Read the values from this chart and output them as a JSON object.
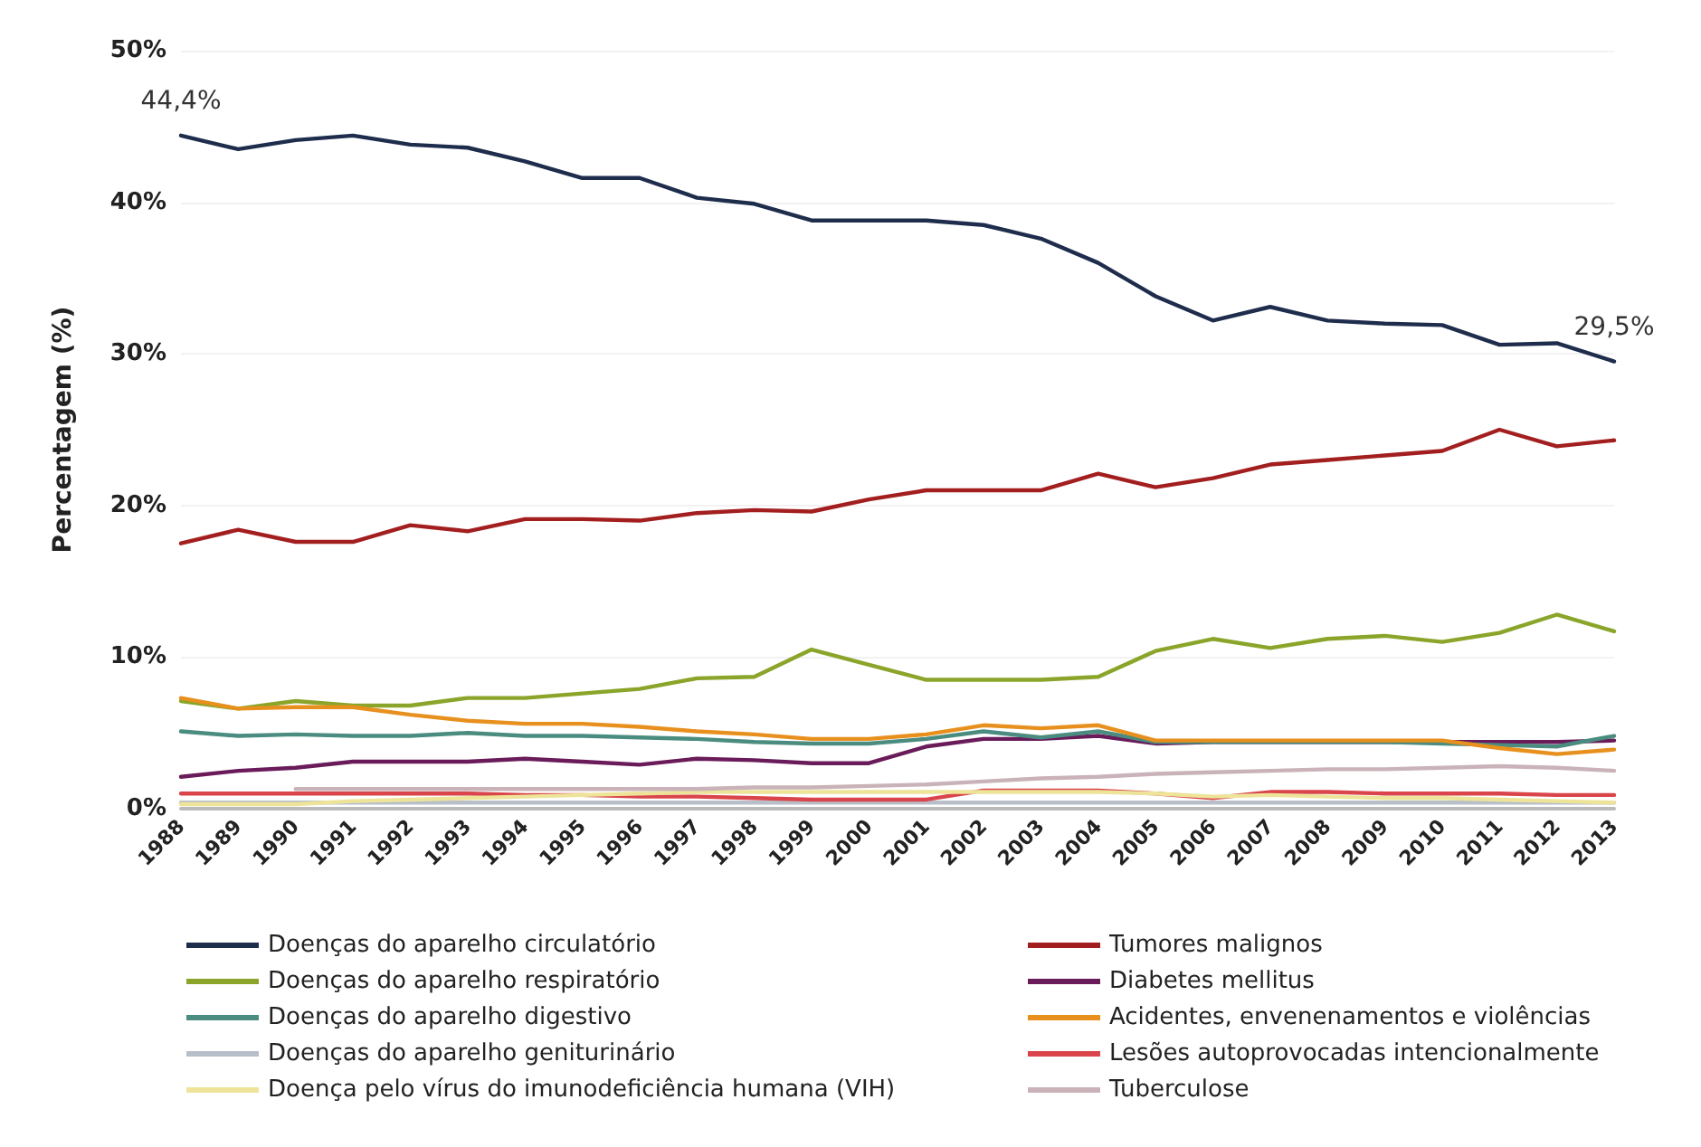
{
  "chart_data": {
    "type": "line",
    "ylabel": "Percentagem (%)",
    "categories": [
      "1988",
      "1989",
      "1990",
      "1991",
      "1992",
      "1993",
      "1994",
      "1995",
      "1996",
      "1997",
      "1998",
      "1999",
      "2000",
      "2001",
      "2002",
      "2003",
      "2004",
      "2005",
      "2006",
      "2007",
      "2008",
      "2009",
      "2010",
      "2011",
      "2012",
      "2013"
    ],
    "ylim": [
      0,
      50
    ],
    "yticks": [
      {
        "value": 0,
        "label": "0%"
      },
      {
        "value": 10,
        "label": "10%"
      },
      {
        "value": 20,
        "label": "20%"
      },
      {
        "value": 30,
        "label": "30%"
      },
      {
        "value": 40,
        "label": "40%"
      },
      {
        "value": 50,
        "label": "50%"
      }
    ],
    "grid": "y",
    "legend": "bottom",
    "line_style": "solid",
    "marker": "none",
    "series": [
      {
        "name": "Doenças do aparelho circulatório",
        "color": "#1f2d4d",
        "values": [
          44.4,
          43.5,
          44.1,
          44.4,
          43.8,
          43.6,
          42.7,
          41.6,
          41.6,
          40.3,
          39.9,
          38.8,
          38.8,
          38.8,
          38.5,
          37.6,
          36.0,
          33.8,
          32.2,
          33.1,
          32.2,
          32.0,
          31.9,
          30.6,
          30.7,
          29.5
        ],
        "value_labels": [
          "44,4%",
          null,
          null,
          null,
          null,
          null,
          null,
          null,
          null,
          null,
          null,
          null,
          null,
          null,
          null,
          null,
          null,
          null,
          null,
          null,
          null,
          null,
          null,
          null,
          null,
          "29,5%"
        ]
      },
      {
        "name": "Tumores malignos",
        "color": "#a31f1f",
        "values": [
          17.5,
          18.4,
          17.6,
          17.6,
          18.7,
          18.3,
          19.1,
          19.1,
          19.0,
          19.5,
          19.7,
          19.6,
          20.4,
          21.0,
          21.0,
          21.0,
          22.1,
          21.2,
          21.8,
          22.7,
          23.0,
          23.3,
          23.6,
          25.0,
          23.9,
          24.3
        ]
      },
      {
        "name": "Doenças do aparelho respiratório",
        "color": "#8aa52a",
        "values": [
          7.1,
          6.6,
          7.1,
          6.8,
          6.8,
          7.3,
          7.3,
          7.6,
          7.9,
          8.6,
          8.7,
          10.5,
          9.5,
          8.5,
          8.5,
          8.5,
          8.7,
          10.4,
          11.2,
          10.6,
          11.2,
          11.4,
          11.0,
          11.6,
          12.8,
          11.7
        ]
      },
      {
        "name": "Diabetes mellitus",
        "color": "#6a1b5a",
        "values": [
          2.1,
          2.5,
          2.7,
          3.1,
          3.1,
          3.1,
          3.3,
          3.1,
          2.9,
          3.3,
          3.2,
          3.0,
          3.0,
          4.1,
          4.6,
          4.6,
          4.8,
          4.3,
          4.4,
          4.4,
          4.4,
          4.4,
          4.4,
          4.4,
          4.4,
          4.5
        ]
      },
      {
        "name": "Doenças do aparelho digestivo",
        "color": "#4a8c7f",
        "values": [
          5.1,
          4.8,
          4.9,
          4.8,
          4.8,
          5.0,
          4.8,
          4.8,
          4.7,
          4.6,
          4.4,
          4.3,
          4.3,
          4.6,
          5.1,
          4.7,
          5.1,
          4.4,
          4.4,
          4.4,
          4.4,
          4.4,
          4.3,
          4.2,
          4.1,
          4.8
        ]
      },
      {
        "name": "Acidentes, envenenamentos e violências",
        "color": "#e8901e",
        "values": [
          7.3,
          6.6,
          6.7,
          6.7,
          6.2,
          5.8,
          5.6,
          5.6,
          5.4,
          5.1,
          4.9,
          4.6,
          4.6,
          4.9,
          5.5,
          5.3,
          5.5,
          4.5,
          4.5,
          4.5,
          4.5,
          4.5,
          4.5,
          4.0,
          3.6,
          3.9
        ]
      },
      {
        "name": "Doenças do aparelho geniturinário",
        "color": "#b8bfc9",
        "values": [
          0.4,
          0.4,
          0.4,
          0.4,
          0.4,
          0.4,
          0.4,
          0.4,
          0.4,
          0.4,
          0.4,
          0.4,
          0.4,
          0.4,
          0.4,
          0.4,
          0.4,
          0.4,
          0.4,
          0.4,
          0.4,
          0.4,
          0.4,
          0.4,
          0.4,
          0.4
        ]
      },
      {
        "name": "Lesões autoprovocadas intencionalmente",
        "color": "#d9454a",
        "values": [
          1.0,
          1.0,
          1.0,
          1.0,
          1.0,
          1.0,
          0.9,
          0.9,
          0.8,
          0.8,
          0.7,
          0.6,
          0.6,
          0.6,
          1.2,
          1.2,
          1.2,
          1.0,
          0.7,
          1.1,
          1.1,
          1.0,
          1.0,
          1.0,
          0.9,
          0.9
        ]
      },
      {
        "name": "Doença pelo vírus do imunodeficiência humana (VIH)",
        "color": "#ede49a",
        "values": [
          0.3,
          0.3,
          0.3,
          0.5,
          0.6,
          0.7,
          0.8,
          0.9,
          1.0,
          1.1,
          1.1,
          1.1,
          1.1,
          1.1,
          1.1,
          1.1,
          1.1,
          1.0,
          0.8,
          0.9,
          0.8,
          0.7,
          0.7,
          0.6,
          0.5,
          0.4
        ]
      },
      {
        "name": "Tuberculose",
        "color": "#c9b3b8",
        "values": [
          null,
          null,
          1.3,
          1.3,
          1.3,
          1.3,
          1.3,
          1.3,
          1.3,
          1.3,
          1.4,
          1.4,
          1.5,
          1.6,
          1.8,
          2.0,
          2.1,
          2.3,
          2.4,
          2.5,
          2.6,
          2.6,
          2.7,
          2.8,
          2.7,
          2.5
        ]
      }
    ]
  }
}
